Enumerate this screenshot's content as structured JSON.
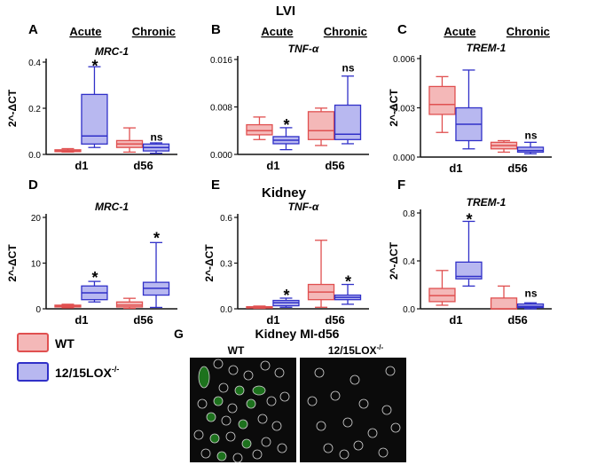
{
  "figure": {
    "row1_group_title": "LVI",
    "row2_group_title": "Kidney",
    "micro_title": "Kidney MI-d56",
    "micro_panel_letter": "G",
    "micro_labels": [
      "WT",
      "12/15LOX"
    ],
    "micro_label_superscript": "-/-",
    "acute_label": "Acute",
    "chronic_label": "Chronic"
  },
  "legend": {
    "items": [
      {
        "label": "WT",
        "fill": "#f4b8b8",
        "stroke": "#e05050"
      },
      {
        "label": "12/15LOX",
        "superscript": "-/-",
        "fill": "#b8b8f0",
        "stroke": "#3030c8"
      }
    ]
  },
  "colors": {
    "wt_fill": "#f4b8b8",
    "wt_stroke": "#e05050",
    "lox_fill": "#b8b8f0",
    "lox_stroke": "#3030c8",
    "cell_circle": "#cfcfcf",
    "cell_green": "#2ec82e"
  },
  "chart_data": [
    {
      "panel": "A",
      "type": "box",
      "title": "MRC-1",
      "ylabel": "2^-ΔCT",
      "ylim": [
        0,
        0.4
      ],
      "yticks": [
        "0.0",
        "0.2",
        "0.4"
      ],
      "categories": [
        "d1",
        "d56"
      ],
      "show_acute_chronic": true,
      "series": [
        {
          "name": "WT",
          "boxes": [
            [
              0.01,
              0.012,
              0.015,
              0.02,
              0.025
            ],
            [
              0.01,
              0.03,
              0.045,
              0.06,
              0.115
            ]
          ]
        },
        {
          "name": "12/15LOX",
          "boxes": [
            [
              0.03,
              0.045,
              0.08,
              0.26,
              0.38
            ],
            [
              0.005,
              0.015,
              0.03,
              0.045,
              0.05
            ]
          ]
        }
      ],
      "annotations": [
        {
          "category": "d1",
          "series": 1,
          "text": "*",
          "value": 0.39
        },
        {
          "category": "d56",
          "series": 1,
          "text": "ns",
          "value": 0.06
        }
      ]
    },
    {
      "panel": "B",
      "type": "box",
      "title": "TNF-α",
      "ylabel": "",
      "ylim": [
        0,
        0.016
      ],
      "yticks": [
        "0.000",
        "0.008",
        "0.016"
      ],
      "categories": [
        "d1",
        "d56"
      ],
      "show_acute_chronic": true,
      "series": [
        {
          "name": "WT",
          "boxes": [
            [
              0.0025,
              0.0033,
              0.004,
              0.005,
              0.0063
            ],
            [
              0.0015,
              0.0025,
              0.004,
              0.0072,
              0.0078
            ]
          ]
        },
        {
          "name": "12/15LOX",
          "boxes": [
            [
              0.0008,
              0.0018,
              0.0024,
              0.003,
              0.0045
            ],
            [
              0.0018,
              0.0025,
              0.0034,
              0.0083,
              0.0132
            ]
          ]
        }
      ],
      "annotations": [
        {
          "category": "d1",
          "series": 1,
          "text": "*",
          "value": 0.0052
        },
        {
          "category": "d56",
          "series": 1,
          "text": "ns",
          "value": 0.014
        }
      ]
    },
    {
      "panel": "C",
      "type": "box",
      "title": "TREM-1",
      "ylabel": "2^-ΔCT",
      "ylim": [
        0,
        0.006
      ],
      "yticks": [
        "0.000",
        "0.003",
        "0.006"
      ],
      "categories": [
        "d1",
        "d56"
      ],
      "show_acute_chronic": true,
      "series": [
        {
          "name": "WT",
          "boxes": [
            [
              0.0015,
              0.0026,
              0.0032,
              0.0043,
              0.0049
            ],
            [
              0.0003,
              0.0005,
              0.0007,
              0.0009,
              0.001
            ]
          ]
        },
        {
          "name": "12/15LOX",
          "boxes": [
            [
              0.0005,
              0.001,
              0.002,
              0.003,
              0.0053
            ],
            [
              0.0002,
              0.0003,
              0.0004,
              0.0006,
              0.0009
            ]
          ]
        }
      ],
      "annotations": [
        {
          "category": "d56",
          "series": 1,
          "text": "ns",
          "value": 0.0011
        }
      ]
    },
    {
      "panel": "D",
      "type": "box",
      "title": "MRC-1",
      "ylabel": "2^-ΔCT",
      "ylim": [
        0,
        20
      ],
      "yticks": [
        "0",
        "10",
        "20"
      ],
      "categories": [
        "d1",
        "d56"
      ],
      "show_acute_chronic": false,
      "series": [
        {
          "name": "WT",
          "boxes": [
            [
              0.2,
              0.4,
              0.6,
              0.8,
              1.0
            ],
            [
              0.1,
              0.4,
              0.8,
              1.5,
              2.3
            ]
          ]
        },
        {
          "name": "12/15LOX",
          "boxes": [
            [
              1.5,
              2.0,
              3.5,
              5.0,
              6.0
            ],
            [
              0.3,
              3.0,
              4.5,
              5.8,
              14.5
            ]
          ]
        }
      ],
      "annotations": [
        {
          "category": "d1",
          "series": 1,
          "text": "*",
          "value": 7.2
        },
        {
          "category": "d56",
          "series": 1,
          "text": "*",
          "value": 15.8
        }
      ]
    },
    {
      "panel": "E",
      "type": "box",
      "title": "TNF-α",
      "ylabel": "2^-ΔCT",
      "ylim": [
        0,
        0.6
      ],
      "yticks": [
        "0.0",
        "0.3",
        "0.6"
      ],
      "categories": [
        "d1",
        "d56"
      ],
      "show_acute_chronic": false,
      "series": [
        {
          "name": "WT",
          "boxes": [
            [
              0.003,
              0.006,
              0.01,
              0.014,
              0.018
            ],
            [
              0.01,
              0.06,
              0.11,
              0.16,
              0.45
            ]
          ]
        },
        {
          "name": "12/15LOX",
          "boxes": [
            [
              0.01,
              0.02,
              0.04,
              0.055,
              0.07
            ],
            [
              0.03,
              0.06,
              0.075,
              0.09,
              0.16
            ]
          ]
        }
      ],
      "annotations": [
        {
          "category": "d1",
          "series": 1,
          "text": "*",
          "value": 0.1
        },
        {
          "category": "d56",
          "series": 1,
          "text": "*",
          "value": 0.19
        }
      ]
    },
    {
      "panel": "F",
      "type": "box",
      "title": "TREM-1",
      "ylabel": "2^-ΔCT",
      "ylim": [
        0,
        0.8
      ],
      "yticks": [
        "0.0",
        "0.4",
        "0.8"
      ],
      "categories": [
        "d1",
        "d56"
      ],
      "show_acute_chronic": false,
      "series": [
        {
          "name": "WT",
          "boxes": [
            [
              0.03,
              0.06,
              0.11,
              0.17,
              0.32
            ],
            [
              0.0,
              0.0,
              0.0,
              0.09,
              0.19
            ]
          ]
        },
        {
          "name": "12/15LOX",
          "boxes": [
            [
              0.19,
              0.25,
              0.27,
              0.39,
              0.73
            ],
            [
              0.0,
              0.01,
              0.02,
              0.04,
              0.05
            ]
          ]
        }
      ],
      "annotations": [
        {
          "category": "d1",
          "series": 1,
          "text": "*",
          "value": 0.76
        },
        {
          "category": "d56",
          "series": 1,
          "text": "ns",
          "value": 0.1
        }
      ]
    }
  ]
}
